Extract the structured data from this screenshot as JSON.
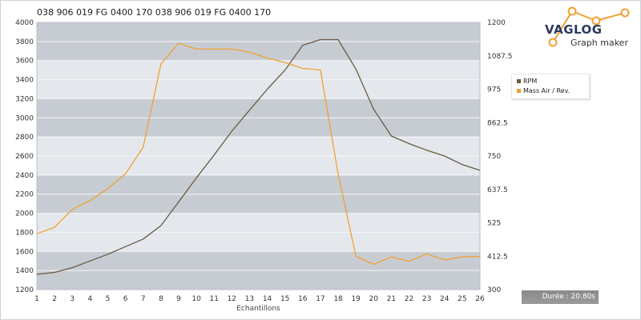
{
  "header": {
    "title": "038 906 019 FG    0400 170 038 906 019 FG    0400 170"
  },
  "logo": {
    "brand": "VAGLOG",
    "subtitle": "Graph maker"
  },
  "duration": {
    "label": "Durée : 20.80s"
  },
  "colors": {
    "rpm": "#6b5a44",
    "maf": "#f0a030",
    "bandDark": "#c7ccd3",
    "bandLight": "#e4e8ec",
    "logoOrange": "#f0a030"
  },
  "chart_data": {
    "type": "line",
    "xlabel": "Echantillons",
    "x": [
      1,
      2,
      3,
      4,
      5,
      6,
      7,
      8,
      9,
      10,
      11,
      12,
      13,
      14,
      15,
      16,
      17,
      18,
      19,
      20,
      21,
      22,
      23,
      24,
      25,
      26
    ],
    "xticks": [
      "1",
      "2",
      "3",
      "4",
      "5",
      "6",
      "7",
      "8",
      "9",
      "10",
      "11",
      "12",
      "13",
      "14",
      "15",
      "16",
      "17",
      "18",
      "19",
      "20",
      "21",
      "22",
      "23",
      "24",
      "25",
      "26"
    ],
    "ylim_left": [
      1200,
      4000
    ],
    "yticks_left": [
      "1200",
      "1400",
      "1600",
      "1800",
      "2000",
      "2200",
      "2400",
      "2600",
      "2800",
      "3000",
      "3200",
      "3400",
      "3600",
      "3800",
      "4000"
    ],
    "ylim_right": [
      300,
      1200
    ],
    "yticks_right": [
      "300",
      "412.5",
      "525",
      "637.5",
      "750",
      "862.5",
      "975",
      "1087.5",
      "1200"
    ],
    "grid": true,
    "legend_position": "right",
    "series": [
      {
        "name": "RPM",
        "axis": "left",
        "values": [
          1360,
          1380,
          1430,
          1500,
          1570,
          1650,
          1730,
          1870,
          2120,
          2370,
          2610,
          2860,
          3080,
          3300,
          3500,
          3760,
          3820,
          3820,
          3510,
          3090,
          2810,
          2730,
          2660,
          2600,
          2510,
          2450
        ]
      },
      {
        "name": "Mass Air / Rev.",
        "axis": "right",
        "values": [
          488,
          510,
          570,
          600,
          640,
          690,
          780,
          1060,
          1130,
          1110,
          1110,
          1110,
          1100,
          1080,
          1065,
          1045,
          1040,
          690,
          412,
          385,
          410,
          395,
          420,
          400,
          410,
          412
        ]
      }
    ]
  }
}
